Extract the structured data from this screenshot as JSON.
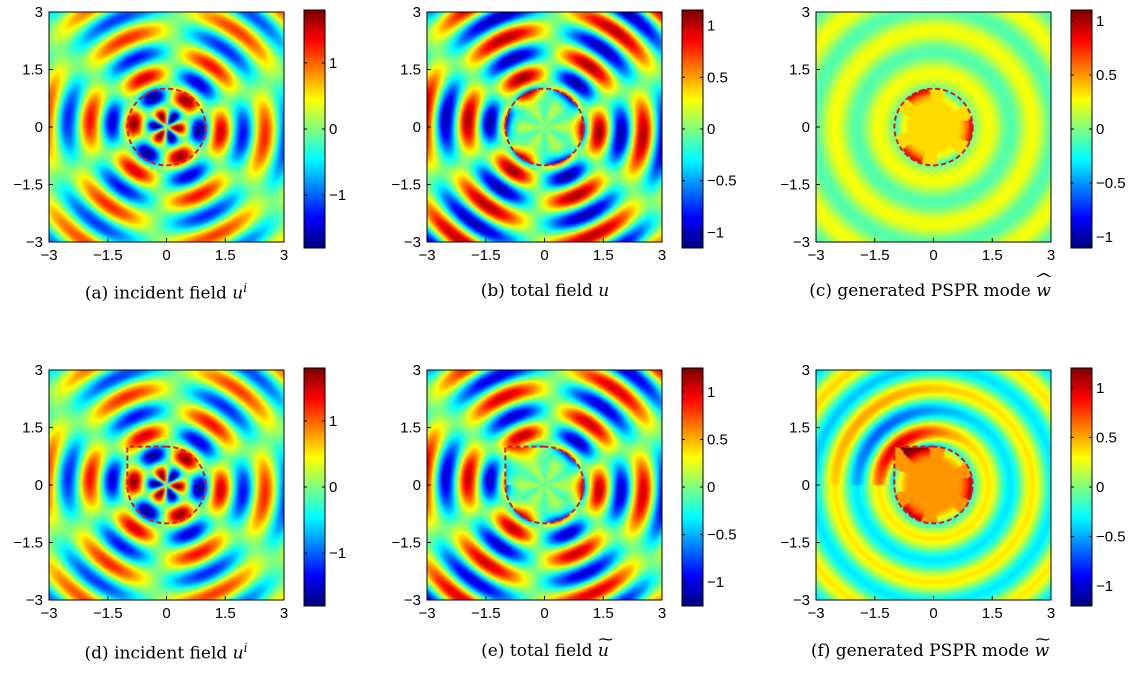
{
  "chart_data": [
    {
      "type": "heatmap",
      "caption": {
        "tag": "(a)",
        "text": "incident field",
        "symbol": "u",
        "sup": "i",
        "accent": ""
      },
      "x_ticks": [
        "−3",
        "−1.5",
        "0",
        "1.5",
        "3"
      ],
      "y_ticks": [
        "3",
        "1.5",
        "0",
        "−1.5",
        "−3"
      ],
      "xlim": [
        -3,
        3
      ],
      "ylim": [
        -3,
        3
      ],
      "colorbar": {
        "range": [
          -1.8,
          1.8
        ],
        "ticks": [
          {
            "value": 1,
            "label": "1"
          },
          {
            "value": 0,
            "label": "0"
          },
          {
            "value": -1,
            "label": "−1"
          }
        ]
      },
      "boundary": "circle",
      "field": "incident"
    },
    {
      "type": "heatmap",
      "caption": {
        "tag": "(b)",
        "text": "total field",
        "symbol": "u",
        "sup": "",
        "accent": ""
      },
      "x_ticks": [
        "−3",
        "−1.5",
        "0",
        "1.5",
        "3"
      ],
      "y_ticks": [
        "3",
        "1.5",
        "0",
        "−1.5",
        "−3"
      ],
      "xlim": [
        -3,
        3
      ],
      "ylim": [
        -3,
        3
      ],
      "colorbar": {
        "range": [
          -1.15,
          1.15
        ],
        "ticks": [
          {
            "value": 1,
            "label": "1"
          },
          {
            "value": 0.5,
            "label": "0.5"
          },
          {
            "value": 0,
            "label": "0"
          },
          {
            "value": -0.5,
            "label": "−0.5"
          },
          {
            "value": -1,
            "label": "−1"
          }
        ]
      },
      "boundary": "circle",
      "field": "total"
    },
    {
      "type": "heatmap",
      "caption": {
        "tag": "(c)",
        "text": "generated PSPR mode",
        "symbol": "w",
        "sup": "",
        "accent": "widehat"
      },
      "x_ticks": [
        "−3",
        "−1.5",
        "0",
        "1.5",
        "3"
      ],
      "y_ticks": [
        "3",
        "1.5",
        "0",
        "−1.5",
        "−3"
      ],
      "xlim": [
        -3,
        3
      ],
      "ylim": [
        -3,
        3
      ],
      "colorbar": {
        "range": [
          -1.1,
          1.1
        ],
        "ticks": [
          {
            "value": 1,
            "label": "1"
          },
          {
            "value": 0.5,
            "label": "0.5"
          },
          {
            "value": 0,
            "label": "0"
          },
          {
            "value": -0.5,
            "label": "−0.5"
          },
          {
            "value": -1,
            "label": "−1"
          }
        ]
      },
      "boundary": "circle",
      "field": "mode"
    },
    {
      "type": "heatmap",
      "caption": {
        "tag": "(d)",
        "text": "incident field",
        "symbol": "u",
        "sup": "i",
        "accent": ""
      },
      "x_ticks": [
        "−3",
        "−1.5",
        "0",
        "1.5",
        "3"
      ],
      "y_ticks": [
        "3",
        "1.5",
        "0",
        "−1.5",
        "−3"
      ],
      "xlim": [
        -3,
        3
      ],
      "ylim": [
        -3,
        3
      ],
      "colorbar": {
        "range": [
          -1.8,
          1.8
        ],
        "ticks": [
          {
            "value": 1,
            "label": "1"
          },
          {
            "value": 0,
            "label": "0"
          },
          {
            "value": -1,
            "label": "−1"
          }
        ]
      },
      "boundary": "notched",
      "field": "incident"
    },
    {
      "type": "heatmap",
      "caption": {
        "tag": "(e)",
        "text": "total field",
        "symbol": "u",
        "sup": "",
        "accent": "widetilde"
      },
      "x_ticks": [
        "−3",
        "−1.5",
        "0",
        "1.5",
        "3"
      ],
      "y_ticks": [
        "3",
        "1.5",
        "0",
        "−1.5",
        "−3"
      ],
      "xlim": [
        -3,
        3
      ],
      "ylim": [
        -3,
        3
      ],
      "colorbar": {
        "range": [
          -1.25,
          1.25
        ],
        "ticks": [
          {
            "value": 1,
            "label": "1"
          },
          {
            "value": 0.5,
            "label": "0.5"
          },
          {
            "value": 0,
            "label": "0"
          },
          {
            "value": -0.5,
            "label": "−0.5"
          },
          {
            "value": -1,
            "label": "−1"
          }
        ]
      },
      "boundary": "notched",
      "field": "total"
    },
    {
      "type": "heatmap",
      "caption": {
        "tag": "(f)",
        "text": "generated PSPR mode",
        "symbol": "w",
        "sup": "",
        "accent": "widetilde"
      },
      "x_ticks": [
        "−3",
        "−1.5",
        "0",
        "1.5",
        "3"
      ],
      "y_ticks": [
        "3",
        "1.5",
        "0",
        "−1.5",
        "−3"
      ],
      "xlim": [
        -3,
        3
      ],
      "ylim": [
        -3,
        3
      ],
      "colorbar": {
        "range": [
          -1.2,
          1.2
        ],
        "ticks": [
          {
            "value": 1,
            "label": "1"
          },
          {
            "value": 0.5,
            "label": "0.5"
          },
          {
            "value": 0,
            "label": "0"
          },
          {
            "value": -0.5,
            "label": "−0.5"
          },
          {
            "value": -1,
            "label": "−1"
          }
        ]
      },
      "boundary": "notched",
      "field": "mode"
    }
  ],
  "colormap": "jet",
  "boundary_color": "#d7191c"
}
